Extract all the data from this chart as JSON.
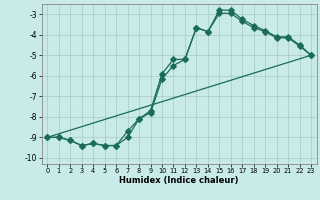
{
  "xlabel": "Humidex (Indice chaleur)",
  "background_color": "#c8eae8",
  "grid_color": "#a8c8c4",
  "line_color": "#1a6b5a",
  "xlim": [
    -0.5,
    23.5
  ],
  "ylim": [
    -10.3,
    -2.5
  ],
  "xticks": [
    0,
    1,
    2,
    3,
    4,
    5,
    6,
    7,
    8,
    9,
    10,
    11,
    12,
    13,
    14,
    15,
    16,
    17,
    18,
    19,
    20,
    21,
    22,
    23
  ],
  "yticks": [
    -10,
    -9,
    -8,
    -7,
    -6,
    -5,
    -4,
    -3
  ],
  "curve1_x": [
    0,
    1,
    2,
    3,
    4,
    5,
    6,
    7,
    8,
    9,
    10,
    11,
    12,
    13,
    14,
    15,
    16,
    17,
    18,
    19,
    20,
    21,
    22,
    23
  ],
  "curve1_y": [
    -9.0,
    -9.0,
    -9.15,
    -9.4,
    -9.3,
    -9.4,
    -9.4,
    -9.0,
    -8.1,
    -7.7,
    -5.9,
    -5.2,
    -5.2,
    -3.65,
    -3.85,
    -2.8,
    -2.8,
    -3.25,
    -3.55,
    -3.8,
    -4.1,
    -4.1,
    -4.5,
    -5.0
  ],
  "curve2_x": [
    0,
    1,
    2,
    3,
    4,
    5,
    6,
    7,
    8,
    9,
    10,
    11,
    12,
    13,
    14,
    15,
    16,
    17,
    18,
    19,
    20,
    21,
    22,
    23
  ],
  "curve2_y": [
    -9.0,
    -9.0,
    -9.15,
    -9.4,
    -9.3,
    -9.4,
    -9.4,
    -8.7,
    -8.1,
    -7.8,
    -6.15,
    -5.5,
    -5.2,
    -3.65,
    -3.85,
    -2.95,
    -2.95,
    -3.35,
    -3.65,
    -3.85,
    -4.15,
    -4.15,
    -4.55,
    -5.0
  ],
  "line3_x": [
    0,
    23
  ],
  "line3_y": [
    -9.0,
    -5.0
  ]
}
